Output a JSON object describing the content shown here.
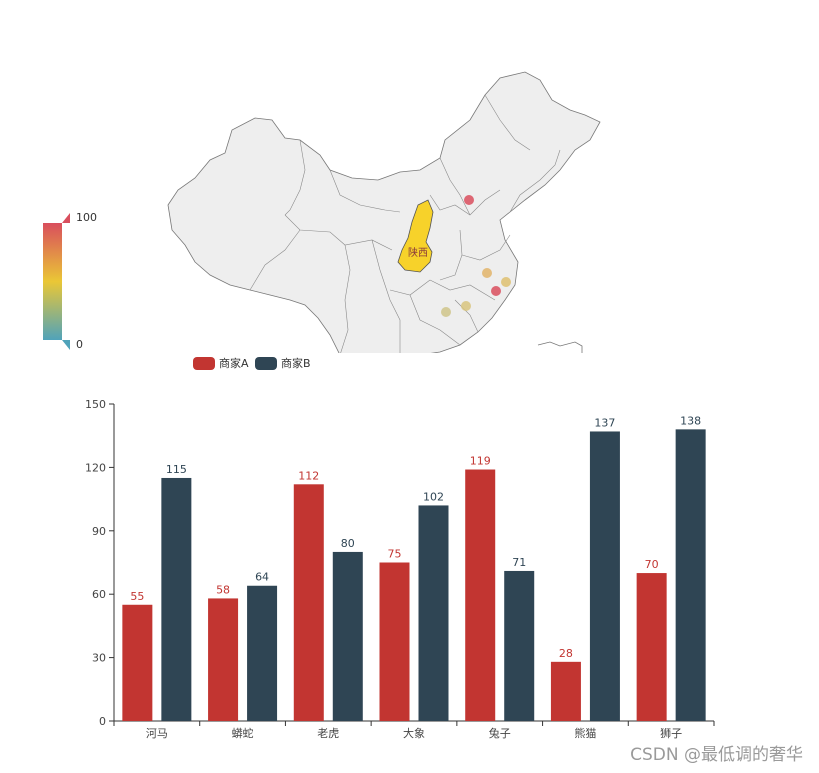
{
  "map": {
    "visual_map": {
      "max_label": "100",
      "min_label": "0",
      "colors": [
        "#d94e5d",
        "#eac736",
        "#50a3ba"
      ]
    },
    "highlight_region": "陕西",
    "highlight_color": "#f7d22a",
    "land_color": "#eeeeee",
    "border_color": "#777777",
    "points": [
      {
        "value": 100,
        "color": "#d94e5d"
      },
      {
        "value": 55,
        "color": "#e2b46a"
      },
      {
        "value": 100,
        "color": "#d94e5d"
      },
      {
        "value": 50,
        "color": "#dec070"
      },
      {
        "value": 45,
        "color": "#d8c47e"
      },
      {
        "value": 40,
        "color": "#cfc489"
      }
    ]
  },
  "legend": {
    "items": [
      {
        "label": "商家A",
        "color": "#c23531"
      },
      {
        "label": "商家B",
        "color": "#2f4554"
      }
    ]
  },
  "chart_data": {
    "type": "bar",
    "categories": [
      "河马",
      "蟒蛇",
      "老虎",
      "大象",
      "兔子",
      "熊猫",
      "狮子"
    ],
    "series": [
      {
        "name": "商家A",
        "color": "#c23531",
        "values": [
          55,
          58,
          112,
          75,
          119,
          28,
          70
        ]
      },
      {
        "name": "商家B",
        "color": "#2f4554",
        "values": [
          115,
          64,
          80,
          102,
          71,
          137,
          138
        ]
      }
    ],
    "ylim": [
      0,
      150
    ],
    "yticks": [
      "0",
      "30",
      "60",
      "90",
      "120",
      "150"
    ],
    "grid": false,
    "legend_position": "top-left"
  },
  "watermark": "CSDN @最低调的奢华"
}
